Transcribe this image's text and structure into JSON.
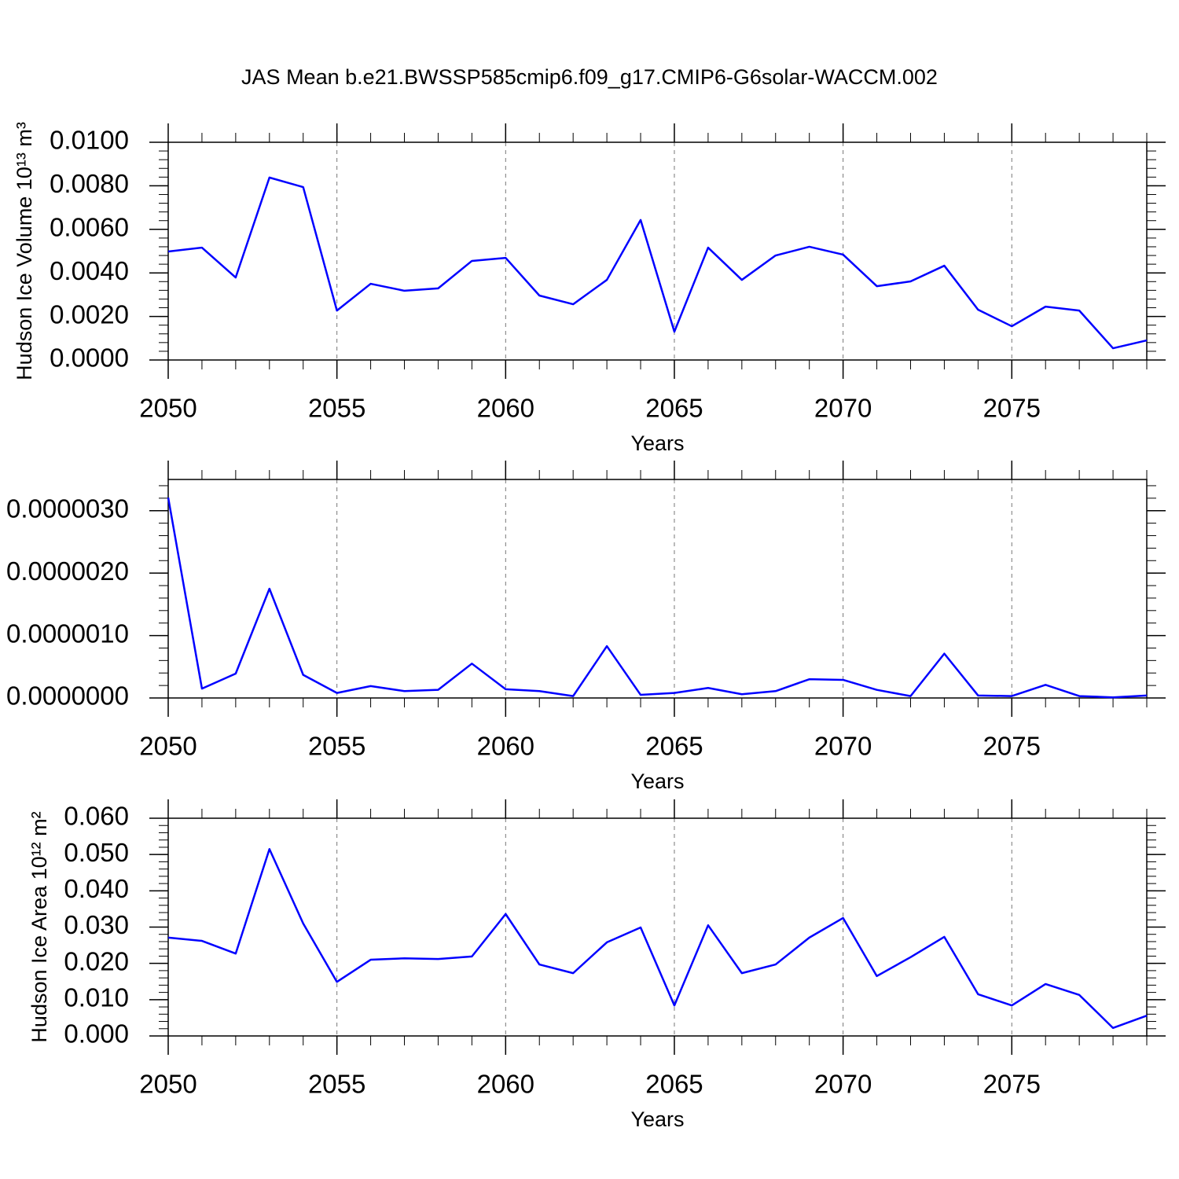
{
  "chart_data": [
    {
      "type": "line",
      "title": "JAS Mean b.e21.BWSSP585cmip6.f09_g17.CMIP6-G6solar-WACCM.002",
      "x_label": "Years",
      "y_label": "Hudson Ice Volume 10¹³ m³",
      "color": "#0000ff",
      "grid": true,
      "x": [
        2050,
        2051,
        2052,
        2053,
        2054,
        2055,
        2056,
        2057,
        2058,
        2059,
        2060,
        2061,
        2062,
        2063,
        2064,
        2065,
        2066,
        2067,
        2068,
        2069,
        2070,
        2071,
        2072,
        2073,
        2074,
        2075,
        2076,
        2077,
        2078,
        2079
      ],
      "values": [
        0.00498,
        0.00516,
        0.00379,
        0.00838,
        0.00794,
        0.00227,
        0.0035,
        0.00318,
        0.00329,
        0.00455,
        0.00469,
        0.00296,
        0.00256,
        0.00368,
        0.00643,
        0.0013,
        0.00516,
        0.00368,
        0.0048,
        0.0052,
        0.00484,
        0.00339,
        0.00361,
        0.00433,
        0.00231,
        0.00155,
        0.00245,
        0.00227,
        0.00054,
        0.0009
      ],
      "xlim": [
        2050,
        2079
      ],
      "xticks": [
        2050,
        2055,
        2060,
        2065,
        2070,
        2075
      ],
      "ylim": [
        0,
        0.01
      ],
      "yticks": [
        {
          "value": 0,
          "label": "0.0000"
        },
        {
          "value": 0.002,
          "label": "0.0020"
        },
        {
          "value": 0.004,
          "label": "0.0040"
        },
        {
          "value": 0.006,
          "label": "0.0060"
        },
        {
          "value": 0.008,
          "label": "0.0080"
        },
        {
          "value": 0.01,
          "label": "0.0100"
        }
      ]
    },
    {
      "type": "line",
      "x_label": "Years",
      "color": "#0000ff",
      "grid": true,
      "x": [
        2050,
        2051,
        2052,
        2053,
        2054,
        2055,
        2056,
        2057,
        2058,
        2059,
        2060,
        2061,
        2062,
        2063,
        2064,
        2065,
        2066,
        2067,
        2068,
        2069,
        2070,
        2071,
        2072,
        2073,
        2074,
        2075,
        2076,
        2077,
        2078,
        2079
      ],
      "values": [
        3.21e-06,
        1.5e-07,
        3.9e-07,
        1.75e-06,
        3.7e-07,
        8e-08,
        1.9e-07,
        1.1e-07,
        1.3e-07,
        5.5e-07,
        1.4e-07,
        1.1e-07,
        3e-08,
        8.3e-07,
        5e-08,
        8e-08,
        1.6e-07,
        6e-08,
        1.1e-07,
        3e-07,
        2.9e-07,
        1.3e-07,
        3e-08,
        7.1e-07,
        4e-08,
        3e-08,
        2.1e-07,
        3e-08,
        1e-08,
        4e-08
      ],
      "xlim": [
        2050,
        2079
      ],
      "xticks": [
        2050,
        2055,
        2060,
        2065,
        2070,
        2075
      ],
      "ylim": [
        0,
        3.5e-06
      ],
      "yticks": [
        {
          "value": 0,
          "label": "0.0000000"
        },
        {
          "value": 1e-06,
          "label": "0.0000010"
        },
        {
          "value": 2e-06,
          "label": "0.0000020"
        },
        {
          "value": 3e-06,
          "label": "0.0000030"
        }
      ]
    },
    {
      "type": "line",
      "x_label": "Years",
      "y_label": "Hudson Ice Area 10¹² m²",
      "color": "#0000ff",
      "grid": true,
      "x": [
        2050,
        2051,
        2052,
        2053,
        2054,
        2055,
        2056,
        2057,
        2058,
        2059,
        2060,
        2061,
        2062,
        2063,
        2064,
        2065,
        2066,
        2067,
        2068,
        2069,
        2070,
        2071,
        2072,
        2073,
        2074,
        2075,
        2076,
        2077,
        2078,
        2079
      ],
      "values": [
        0.0271,
        0.0262,
        0.0227,
        0.0515,
        0.031,
        0.0149,
        0.021,
        0.0214,
        0.0212,
        0.0219,
        0.0336,
        0.0197,
        0.0173,
        0.0258,
        0.0299,
        0.0084,
        0.0305,
        0.0173,
        0.0197,
        0.0271,
        0.0325,
        0.0165,
        0.0217,
        0.0273,
        0.0115,
        0.0084,
        0.0143,
        0.0113,
        0.0022,
        0.0056
      ],
      "xlim": [
        2050,
        2079
      ],
      "xticks": [
        2050,
        2055,
        2060,
        2065,
        2070,
        2075
      ],
      "ylim": [
        0,
        0.06
      ],
      "yticks": [
        {
          "value": 0,
          "label": "0.000"
        },
        {
          "value": 0.01,
          "label": "0.010"
        },
        {
          "value": 0.02,
          "label": "0.020"
        },
        {
          "value": 0.03,
          "label": "0.030"
        },
        {
          "value": 0.04,
          "label": "0.040"
        },
        {
          "value": 0.05,
          "label": "0.050"
        },
        {
          "value": 0.06,
          "label": "0.060"
        }
      ]
    }
  ]
}
